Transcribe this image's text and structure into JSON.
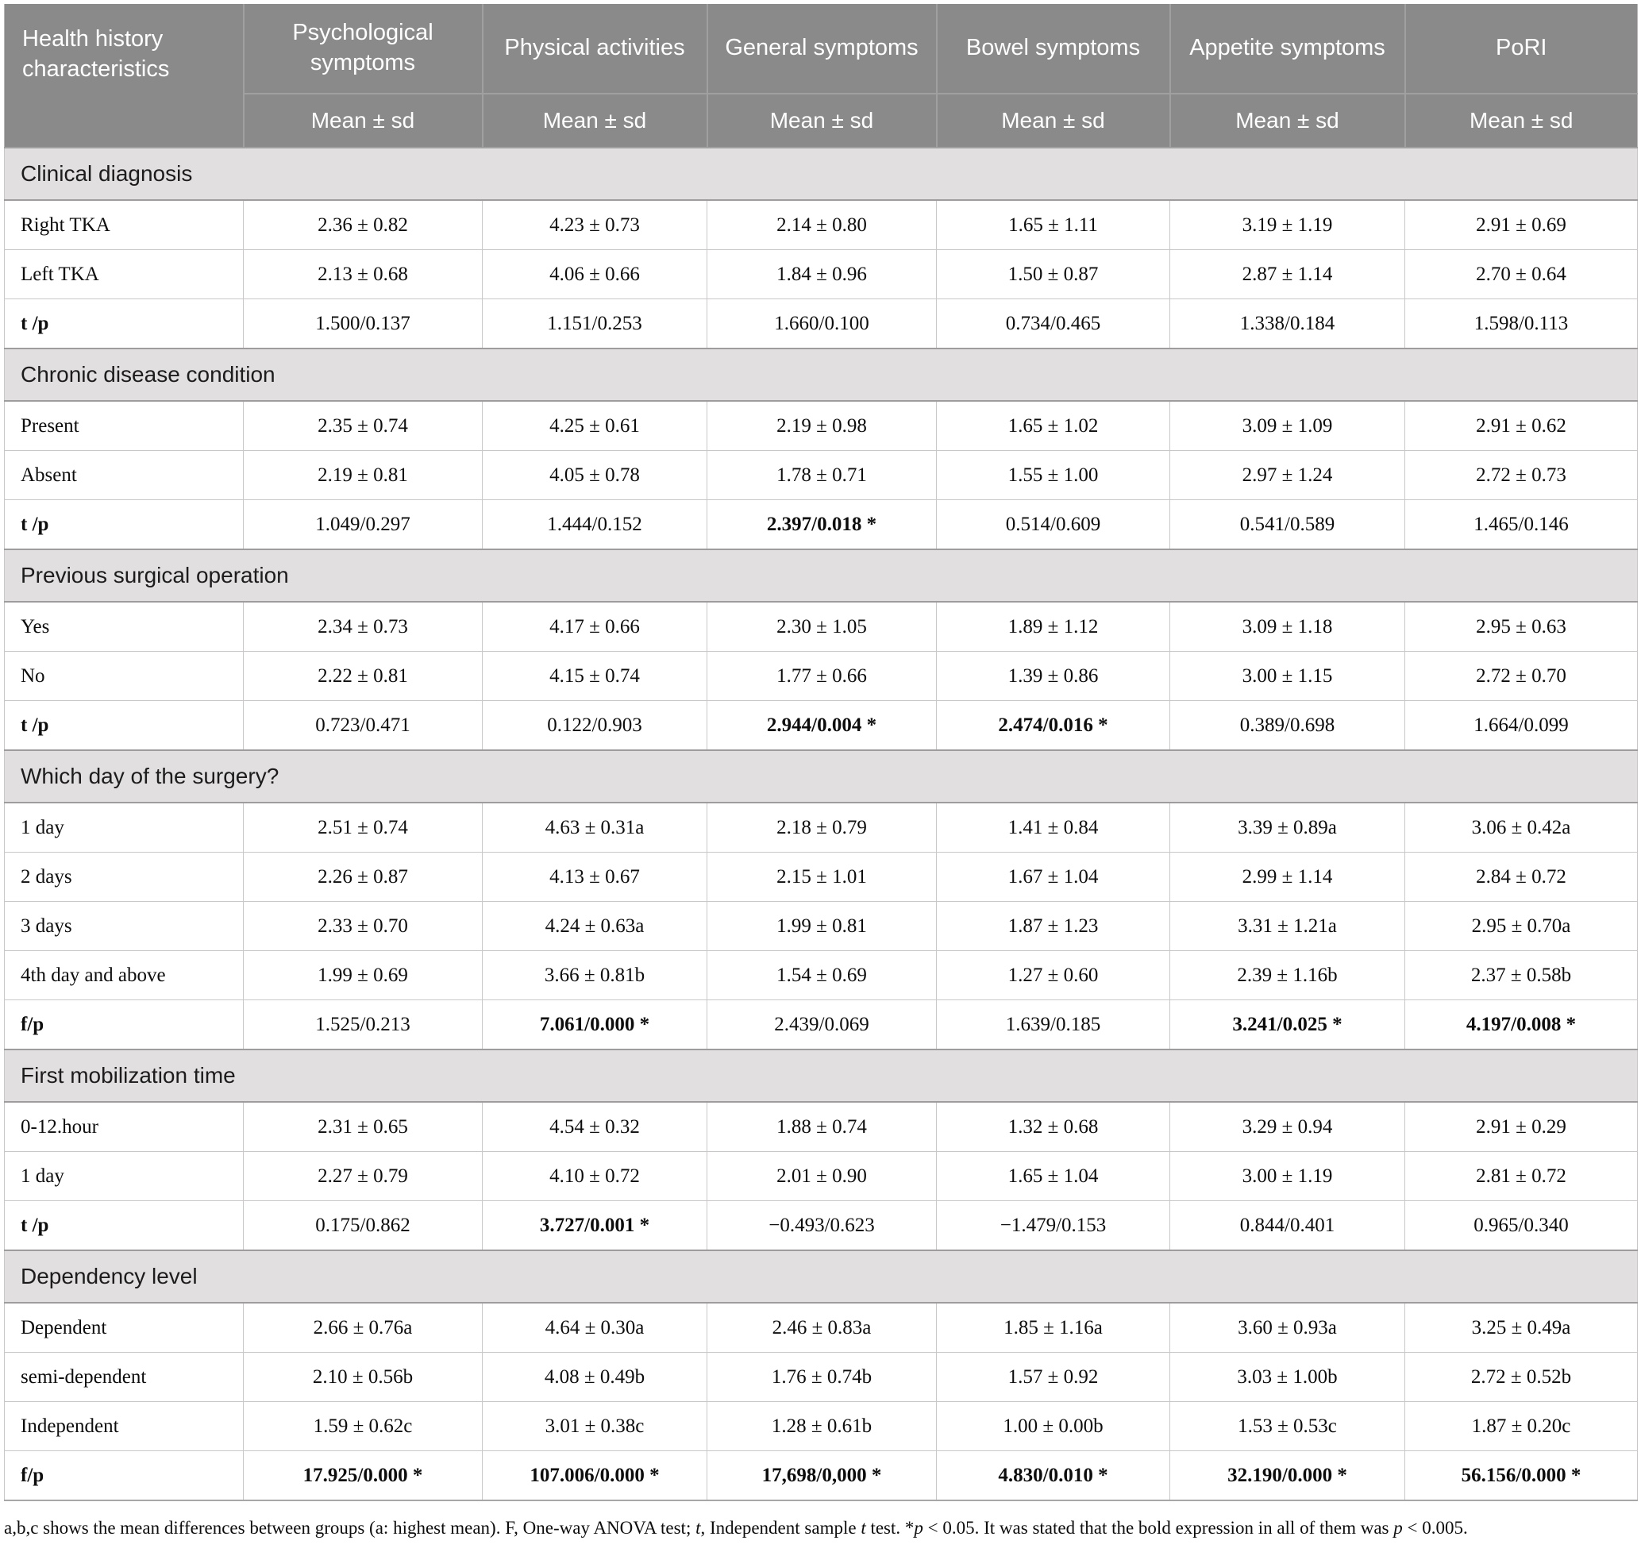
{
  "header": {
    "col0": "Health history characteristics",
    "columns": [
      "Psychological symptoms",
      "Physical activities",
      "General symptoms",
      "Bowel symptoms",
      "Appetite symptoms",
      "PoRI"
    ],
    "subheader": "Mean ± sd"
  },
  "table": {
    "sections": [
      {
        "title": "Clinical diagnosis",
        "rows": [
          {
            "label": "Right TKA",
            "cells": [
              "2.36 ± 0.82",
              "4.23 ± 0.73",
              "2.14 ± 0.80",
              "1.65 ± 1.11",
              "3.19 ± 1.19",
              "2.91 ± 0.69"
            ]
          },
          {
            "label": "Left TKA",
            "cells": [
              "2.13 ± 0.68",
              "4.06 ± 0.66",
              "1.84 ± 0.96",
              "1.50 ± 0.87",
              "2.87 ± 1.14",
              "2.70 ± 0.64"
            ]
          },
          {
            "label": "t /p",
            "label_bold": true,
            "bold_cells": [],
            "cells": [
              "1.500/0.137",
              "1.151/0.253",
              "1.660/0.100",
              "0.734/0.465",
              "1.338/0.184",
              "1.598/0.113"
            ]
          }
        ]
      },
      {
        "title": "Chronic disease condition",
        "rows": [
          {
            "label": "Present",
            "cells": [
              "2.35 ± 0.74",
              "4.25 ± 0.61",
              "2.19 ± 0.98",
              "1.65 ± 1.02",
              "3.09 ± 1.09",
              "2.91 ± 0.62"
            ]
          },
          {
            "label": "Absent",
            "cells": [
              "2.19 ± 0.81",
              "4.05 ± 0.78",
              "1.78 ± 0.71",
              "1.55 ± 1.00",
              "2.97 ± 1.24",
              "2.72 ± 0.73"
            ]
          },
          {
            "label": "t /p",
            "label_bold": true,
            "bold_cells": [
              2
            ],
            "cells": [
              "1.049/0.297",
              "1.444/0.152",
              "2.397/0.018 *",
              "0.514/0.609",
              "0.541/0.589",
              "1.465/0.146"
            ]
          }
        ]
      },
      {
        "title": "Previous surgical operation",
        "rows": [
          {
            "label": "Yes",
            "cells": [
              "2.34 ± 0.73",
              "4.17 ± 0.66",
              "2.30 ± 1.05",
              "1.89 ± 1.12",
              "3.09 ± 1.18",
              "2.95 ± 0.63"
            ]
          },
          {
            "label": "No",
            "cells": [
              "2.22 ± 0.81",
              "4.15 ± 0.74",
              "1.77 ± 0.66",
              "1.39 ± 0.86",
              "3.00 ± 1.15",
              "2.72 ± 0.70"
            ]
          },
          {
            "label": "t /p",
            "label_bold": true,
            "bold_cells": [
              2,
              3
            ],
            "cells": [
              "0.723/0.471",
              "0.122/0.903",
              "2.944/0.004 *",
              "2.474/0.016 *",
              "0.389/0.698",
              "1.664/0.099"
            ]
          }
        ]
      },
      {
        "title": "Which day of the surgery?",
        "rows": [
          {
            "label": "1 day",
            "cells": [
              "2.51 ± 0.74",
              "4.63 ± 0.31a",
              "2.18 ± 0.79",
              "1.41 ± 0.84",
              "3.39 ± 0.89a",
              "3.06 ± 0.42a"
            ]
          },
          {
            "label": "2 days",
            "cells": [
              "2.26 ± 0.87",
              "4.13 ± 0.67",
              "2.15 ± 1.01",
              "1.67 ± 1.04",
              "2.99 ± 1.14",
              "2.84 ± 0.72"
            ]
          },
          {
            "label": "3 days",
            "cells": [
              "2.33 ± 0.70",
              "4.24 ± 0.63a",
              "1.99 ± 0.81",
              "1.87 ± 1.23",
              "3.31 ± 1.21a",
              "2.95 ± 0.70a"
            ]
          },
          {
            "label": "4th day and above",
            "cells": [
              "1.99 ± 0.69",
              "3.66 ± 0.81b",
              "1.54 ± 0.69",
              "1.27 ± 0.60",
              "2.39 ± 1.16b",
              "2.37 ± 0.58b"
            ]
          },
          {
            "label": "f/p",
            "label_bold": true,
            "bold_cells": [
              1,
              4,
              5
            ],
            "cells": [
              "1.525/0.213",
              "7.061/0.000 *",
              "2.439/0.069",
              "1.639/0.185",
              "3.241/0.025 *",
              "4.197/0.008 *"
            ]
          }
        ]
      },
      {
        "title": "First mobilization time",
        "rows": [
          {
            "label": "0-12.hour",
            "cells": [
              "2.31 ± 0.65",
              "4.54 ± 0.32",
              "1.88 ± 0.74",
              "1.32 ± 0.68",
              "3.29 ± 0.94",
              "2.91 ± 0.29"
            ]
          },
          {
            "label": "1 day",
            "cells": [
              "2.27 ± 0.79",
              "4.10 ± 0.72",
              "2.01 ± 0.90",
              "1.65 ± 1.04",
              "3.00 ± 1.19",
              "2.81 ± 0.72"
            ]
          },
          {
            "label": "t /p",
            "label_bold": true,
            "bold_cells": [
              1
            ],
            "cells": [
              "0.175/0.862",
              "3.727/0.001 *",
              "−0.493/0.623",
              "−1.479/0.153",
              "0.844/0.401",
              "0.965/0.340"
            ]
          }
        ]
      },
      {
        "title": "Dependency level",
        "rows": [
          {
            "label": "Dependent",
            "cells": [
              "2.66 ± 0.76a",
              "4.64 ± 0.30a",
              "2.46 ± 0.83a",
              "1.85 ± 1.16a",
              "3.60 ± 0.93a",
              "3.25 ± 0.49a"
            ]
          },
          {
            "label": "semi-dependent",
            "cells": [
              "2.10 ± 0.56b",
              "4.08 ± 0.49b",
              "1.76 ± 0.74b",
              "1.57 ± 0.92",
              "3.03 ± 1.00b",
              "2.72 ± 0.52b"
            ]
          },
          {
            "label": "Independent",
            "cells": [
              "1.59 ± 0.62c",
              "3.01 ± 0.38c",
              "1.28 ± 0.61b",
              "1.00 ± 0.00b",
              "1.53 ± 0.53c",
              "1.87 ± 0.20c"
            ]
          },
          {
            "label": "f/p",
            "label_bold": true,
            "bold_cells": [
              0,
              1,
              2,
              3,
              4,
              5
            ],
            "cells": [
              "17.925/0.000 *",
              "107.006/0.000 *",
              "17,698/0,000 *",
              "4.830/0.010 *",
              "32.190/0.000 *",
              "56.156/0.000 *"
            ]
          }
        ]
      }
    ]
  },
  "footnote": {
    "segments": [
      {
        "t": "a,b,c shows the mean differences between groups (a: highest mean). F, One-way ANOVA test; "
      },
      {
        "t": "t",
        "i": true
      },
      {
        "t": ", Independent sample "
      },
      {
        "t": "t",
        "i": true
      },
      {
        "t": " test. *"
      },
      {
        "t": "p",
        "i": true
      },
      {
        "t": " < 0.05. It was stated that the bold expression in all of them was "
      },
      {
        "t": "p",
        "i": true
      },
      {
        "t": " < 0.005."
      }
    ]
  },
  "colors": {
    "header_bg": "#8a8a8a",
    "header_text": "#ffffff",
    "section_band_bg": "#e1dfdf",
    "row_bg": "#ffffff",
    "grid_line": "#c9c7c7",
    "band_line": "#9e9c9c"
  }
}
